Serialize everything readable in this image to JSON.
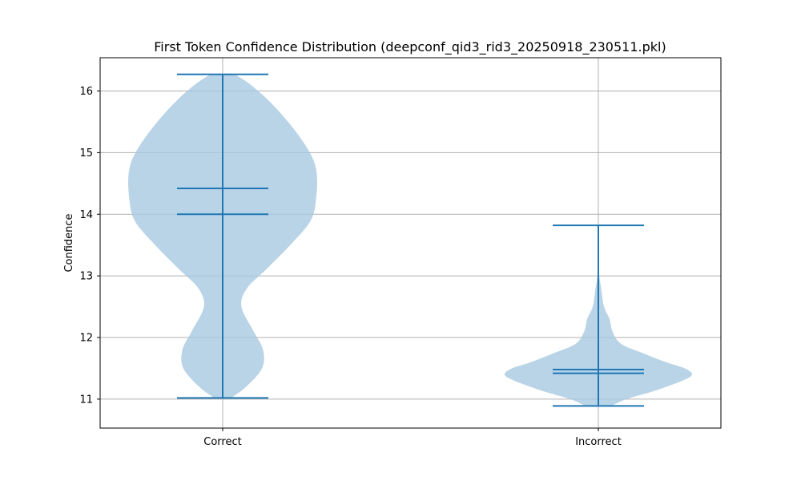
{
  "chart_data": {
    "type": "violin",
    "title": "First Token Confidence Distribution (deepconf_qid3_rid3_20250918_230511.pkl)",
    "xlabel": "",
    "ylabel": "Confidence",
    "categories": [
      "Correct",
      "Incorrect"
    ],
    "yticks": [
      "11",
      "12",
      "13",
      "14",
      "15",
      "16"
    ],
    "ylim": [
      10.53,
      16.54
    ],
    "grid": true,
    "colors": {
      "body": "#a8c8e1",
      "lines": "#1f77b4",
      "grid": "#b0b0b0",
      "axis": "#000000"
    },
    "violins": [
      {
        "name": "Correct",
        "min": 11.02,
        "max": 16.27,
        "mean": 14.42,
        "median": 14.0,
        "density": [
          [
            11.02,
            0.09
          ],
          [
            11.2,
            0.25
          ],
          [
            11.5,
            0.42
          ],
          [
            11.8,
            0.43
          ],
          [
            12.1,
            0.33
          ],
          [
            12.5,
            0.2
          ],
          [
            12.8,
            0.26
          ],
          [
            13.1,
            0.46
          ],
          [
            13.5,
            0.72
          ],
          [
            13.9,
            0.94
          ],
          [
            14.3,
            1.0
          ],
          [
            14.7,
            1.0
          ],
          [
            15.0,
            0.93
          ],
          [
            15.4,
            0.75
          ],
          [
            15.8,
            0.52
          ],
          [
            16.1,
            0.3
          ],
          [
            16.27,
            0.13
          ]
        ]
      },
      {
        "name": "Incorrect",
        "min": 10.89,
        "max": 13.82,
        "mean": 11.48,
        "median": 11.42,
        "density": [
          [
            10.89,
            0.14
          ],
          [
            11.0,
            0.3
          ],
          [
            11.15,
            0.63
          ],
          [
            11.3,
            0.9
          ],
          [
            11.4,
            1.0
          ],
          [
            11.5,
            0.92
          ],
          [
            11.6,
            0.72
          ],
          [
            11.75,
            0.47
          ],
          [
            11.9,
            0.24
          ],
          [
            12.1,
            0.15
          ],
          [
            12.3,
            0.12
          ],
          [
            12.5,
            0.06
          ],
          [
            12.8,
            0.03
          ],
          [
            13.0,
            0.01
          ],
          [
            13.2,
            0.005
          ]
        ]
      }
    ]
  }
}
